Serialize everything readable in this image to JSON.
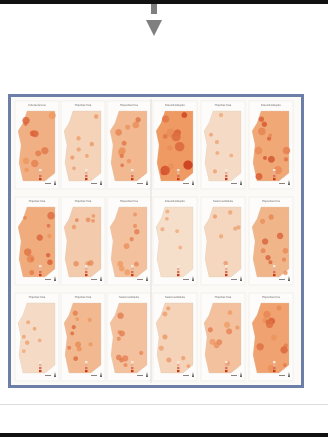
{
  "figure": {
    "panel_titles": [
      "Intolerância",
      "Hipotermia",
      "Hipertermia",
      "Desidratação",
      "Hipotermia",
      "Desidratação",
      "Hipotermia",
      "Hipotermia",
      "Hipertermia",
      "Desidratação",
      "Sazonalidade",
      "Hipertermia",
      "Hipotermia",
      "Hipotermia",
      "Sazonalidade",
      "Sazonalidade",
      "Hipotermia",
      "Hipertermia"
    ],
    "colors": {
      "frame": "#6d7fa8",
      "land_light": "#f6e8d8",
      "land_mid": "#ef9a62",
      "land_dark": "#c9391a",
      "arrow": "#7f7f7f"
    }
  }
}
